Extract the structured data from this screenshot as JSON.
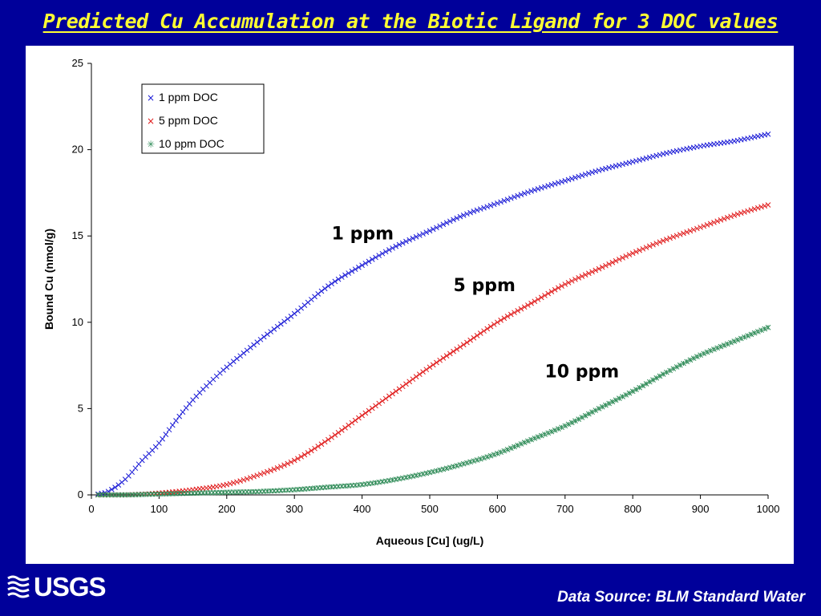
{
  "slide": {
    "title": "Predicted Cu Accumulation at the Biotic Ligand for 3 DOC values",
    "footer_source": "Data Source: BLM Standard Water",
    "logo_text": "USGS"
  },
  "colors": {
    "background": "#00009a",
    "title": "#ffff33",
    "series_1ppm": "#1a1ad6",
    "series_5ppm": "#e01a1a",
    "series_10ppm": "#2e8b57"
  },
  "chart_data": {
    "type": "scatter",
    "title": "",
    "xlabel": "Aqueous [Cu] (ug/L)",
    "ylabel": "Bound Cu (nmol/g)",
    "xlim": [
      0,
      1000
    ],
    "ylim": [
      0,
      25
    ],
    "xticks": [
      0,
      100,
      200,
      300,
      400,
      500,
      600,
      700,
      800,
      900,
      1000
    ],
    "yticks": [
      0,
      5,
      10,
      15,
      20,
      25
    ],
    "grid": false,
    "legend_position": "top-left",
    "marker": "x",
    "series": [
      {
        "name": "1 ppm DOC",
        "color": "#1a1ad6",
        "x": [
          10,
          25,
          50,
          75,
          100,
          125,
          150,
          175,
          200,
          250,
          300,
          350,
          400,
          450,
          500,
          550,
          600,
          650,
          700,
          750,
          800,
          850,
          900,
          950,
          1000
        ],
        "y": [
          0.05,
          0.2,
          0.9,
          2.0,
          3.0,
          4.3,
          5.5,
          6.5,
          7.4,
          9.0,
          10.5,
          12.1,
          13.3,
          14.4,
          15.3,
          16.2,
          16.9,
          17.6,
          18.2,
          18.8,
          19.3,
          19.8,
          20.2,
          20.5,
          20.9
        ]
      },
      {
        "name": "5 ppm DOC",
        "color": "#e01a1a",
        "x": [
          10,
          50,
          100,
          150,
          200,
          250,
          300,
          350,
          400,
          450,
          500,
          550,
          600,
          650,
          700,
          750,
          800,
          850,
          900,
          950,
          1000
        ],
        "y": [
          0.0,
          0.0,
          0.1,
          0.3,
          0.6,
          1.2,
          2.0,
          3.2,
          4.6,
          6.0,
          7.4,
          8.7,
          10.0,
          11.1,
          12.2,
          13.1,
          14.0,
          14.8,
          15.5,
          16.2,
          16.8
        ]
      },
      {
        "name": "10 ppm DOC",
        "color": "#2e8b57",
        "x": [
          10,
          50,
          100,
          150,
          200,
          250,
          300,
          350,
          400,
          450,
          500,
          550,
          600,
          650,
          700,
          750,
          800,
          850,
          900,
          950,
          1000
        ],
        "y": [
          0.0,
          0.0,
          0.05,
          0.1,
          0.15,
          0.2,
          0.3,
          0.45,
          0.6,
          0.9,
          1.3,
          1.8,
          2.4,
          3.2,
          4.0,
          5.0,
          6.0,
          7.1,
          8.1,
          8.9,
          9.7
        ]
      }
    ],
    "annotations": [
      {
        "text": "1 ppm",
        "x": 355,
        "y": 14.8
      },
      {
        "text": "5 ppm",
        "x": 535,
        "y": 11.8
      },
      {
        "text": "10 ppm",
        "x": 670,
        "y": 6.8
      }
    ]
  }
}
